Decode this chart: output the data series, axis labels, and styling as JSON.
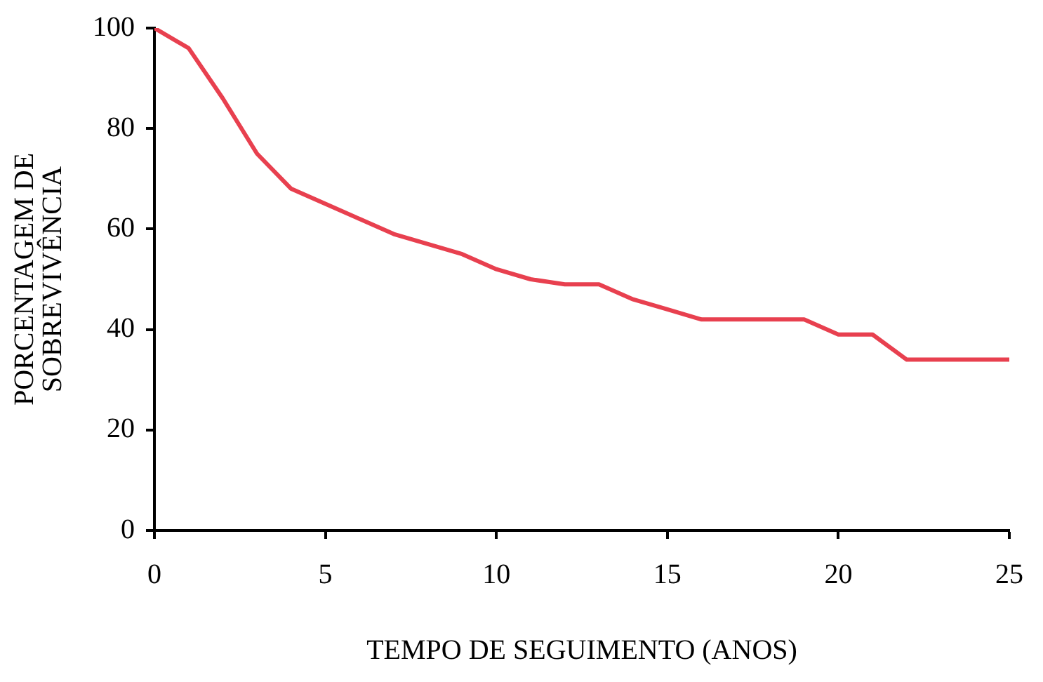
{
  "chart_data": {
    "type": "line",
    "xlabel": "TEMPO DE SEGUIMENTO (ANOS)",
    "ylabel": "PORCENTAGEM DE\nSOBREVIVÊNCIA",
    "x": [
      0,
      1,
      2,
      3,
      4,
      5,
      6,
      7,
      8,
      9,
      10,
      11,
      12,
      13,
      14,
      15,
      16,
      17,
      18,
      19,
      20,
      21,
      22,
      23,
      24,
      25
    ],
    "series": [
      {
        "color": "#e8404f",
        "values": [
          100,
          96,
          86,
          75,
          68,
          65,
          62,
          59,
          57,
          55,
          52,
          50,
          49,
          49,
          46,
          44,
          42,
          42,
          42,
          42,
          39,
          39,
          34,
          34,
          34,
          34
        ]
      }
    ],
    "xlim": [
      0,
      25
    ],
    "xticks": [
      0,
      5,
      10,
      15,
      20,
      25
    ],
    "ylim": [
      0,
      100
    ],
    "yticks": [
      0,
      20,
      40,
      60,
      80,
      100
    ],
    "grid": false,
    "legend": false,
    "marker": "none",
    "line_style": "solid"
  }
}
